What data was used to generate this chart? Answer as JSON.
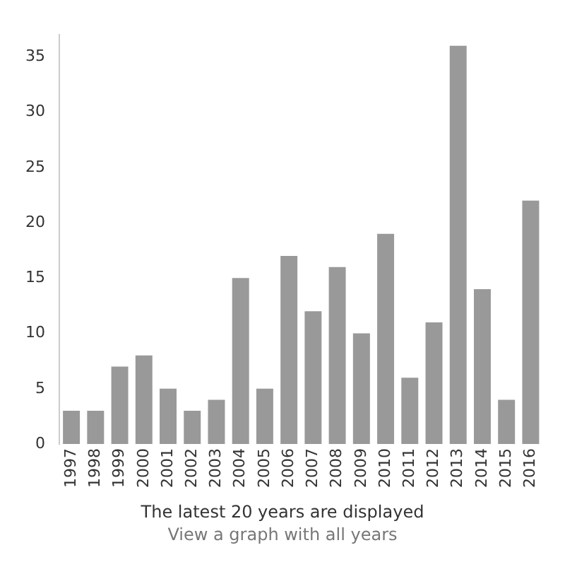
{
  "chart_data": {
    "type": "bar",
    "categories": [
      "1997",
      "1998",
      "1999",
      "2000",
      "2001",
      "2002",
      "2003",
      "2004",
      "2005",
      "2006",
      "2007",
      "2008",
      "2009",
      "2010",
      "2011",
      "2012",
      "2013",
      "2014",
      "2015",
      "2016"
    ],
    "values": [
      3,
      3,
      7,
      8,
      5,
      3,
      4,
      15,
      5,
      17,
      12,
      16,
      10,
      19,
      6,
      11,
      36,
      14,
      4,
      22
    ],
    "color": "#999999",
    "ylim": [
      0,
      37
    ],
    "yticks": [
      0,
      5,
      10,
      15,
      20,
      25,
      30,
      35
    ],
    "grid": false,
    "annotations": [
      "The latest 20 years are displayed",
      "View a graph with all years"
    ]
  }
}
